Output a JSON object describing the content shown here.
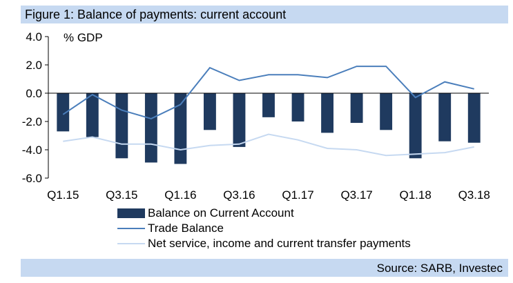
{
  "header": {
    "title": "Figure 1: Balance of payments: current account"
  },
  "footer": {
    "source": "Source: SARB, Investec"
  },
  "colors": {
    "bar": "#1f3a5f",
    "trade_line": "#4a7ebb",
    "services_line": "#c6d9f1",
    "band": "#c6d9f1"
  },
  "chart_data": {
    "type": "bar",
    "unit_label": "% GDP",
    "xlabel": "",
    "ylabel": "",
    "ylim": [
      -6.0,
      4.0
    ],
    "yticks": [
      "4.0",
      "2.0",
      "0.0",
      "-2.0",
      "-4.0",
      "-6.0"
    ],
    "grid": false,
    "legend_position": "bottom",
    "categories": [
      "Q1.15",
      "Q2.15",
      "Q3.15",
      "Q4.15",
      "Q1.16",
      "Q2.16",
      "Q3.16",
      "Q4.16",
      "Q1.17",
      "Q2.17",
      "Q3.17",
      "Q4.17",
      "Q1.18",
      "Q2.18",
      "Q3.18"
    ],
    "tick_labels": [
      "Q1.15",
      "",
      "Q3.15",
      "",
      "Q1.16",
      "",
      "Q3.16",
      "",
      "Q1.17",
      "",
      "Q3.17",
      "",
      "Q1.18",
      "",
      "Q3.18"
    ],
    "series": [
      {
        "name": "Balance on Current Account",
        "kind": "bar",
        "values": [
          -2.7,
          -3.1,
          -4.6,
          -4.9,
          -5.0,
          -2.6,
          -3.8,
          -1.7,
          -2.0,
          -2.8,
          -2.1,
          -2.6,
          -4.6,
          -3.4,
          -3.5
        ]
      },
      {
        "name": "Trade Balance",
        "kind": "line",
        "values": [
          -1.5,
          -0.1,
          -1.2,
          -1.8,
          -0.8,
          1.8,
          0.9,
          1.3,
          1.3,
          1.1,
          1.9,
          1.9,
          -0.3,
          0.8,
          0.3
        ]
      },
      {
        "name": "Net service, income and current transfer payments",
        "kind": "line",
        "values": [
          -3.4,
          -3.1,
          -3.6,
          -3.6,
          -4.0,
          -3.7,
          -3.6,
          -2.9,
          -3.3,
          -3.9,
          -4.0,
          -4.4,
          -4.3,
          -4.2,
          -3.8
        ]
      }
    ]
  }
}
